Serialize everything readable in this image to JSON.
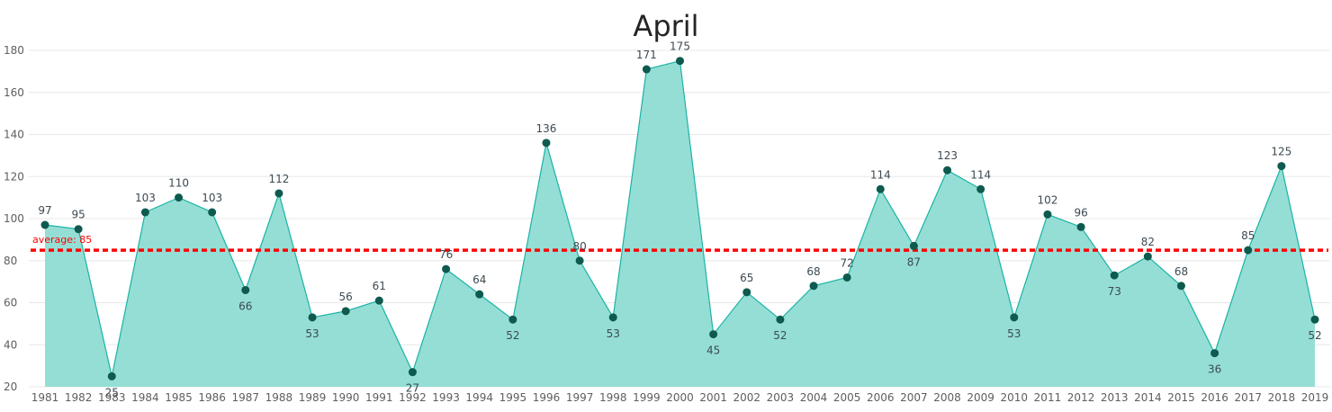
{
  "chart_data": {
    "type": "area",
    "title": "April",
    "xlabel": "",
    "ylabel": "",
    "x": [
      1981,
      1982,
      1983,
      1984,
      1985,
      1986,
      1987,
      1988,
      1989,
      1990,
      1991,
      1992,
      1993,
      1994,
      1995,
      1996,
      1997,
      1998,
      1999,
      2000,
      2001,
      2002,
      2003,
      2004,
      2005,
      2006,
      2007,
      2008,
      2009,
      2010,
      2011,
      2012,
      2013,
      2014,
      2015,
      2016,
      2017,
      2018,
      2019
    ],
    "values": [
      97,
      95,
      25,
      103,
      110,
      103,
      66,
      112,
      53,
      56,
      61,
      27,
      76,
      64,
      52,
      136,
      80,
      53,
      171,
      175,
      45,
      65,
      52,
      68,
      72,
      114,
      87,
      123,
      114,
      53,
      102,
      96,
      73,
      82,
      68,
      36,
      85,
      125,
      52
    ],
    "ylim": [
      20,
      180
    ],
    "yticks": [
      20,
      40,
      60,
      80,
      100,
      120,
      140,
      160,
      180
    ],
    "grid": true,
    "average": {
      "value": 85,
      "label": "average: 85",
      "color": "#ff0000"
    },
    "colors": {
      "fill": "#8fdcd3",
      "line": "#1ab3a6",
      "marker": "#0e5a4e"
    }
  }
}
